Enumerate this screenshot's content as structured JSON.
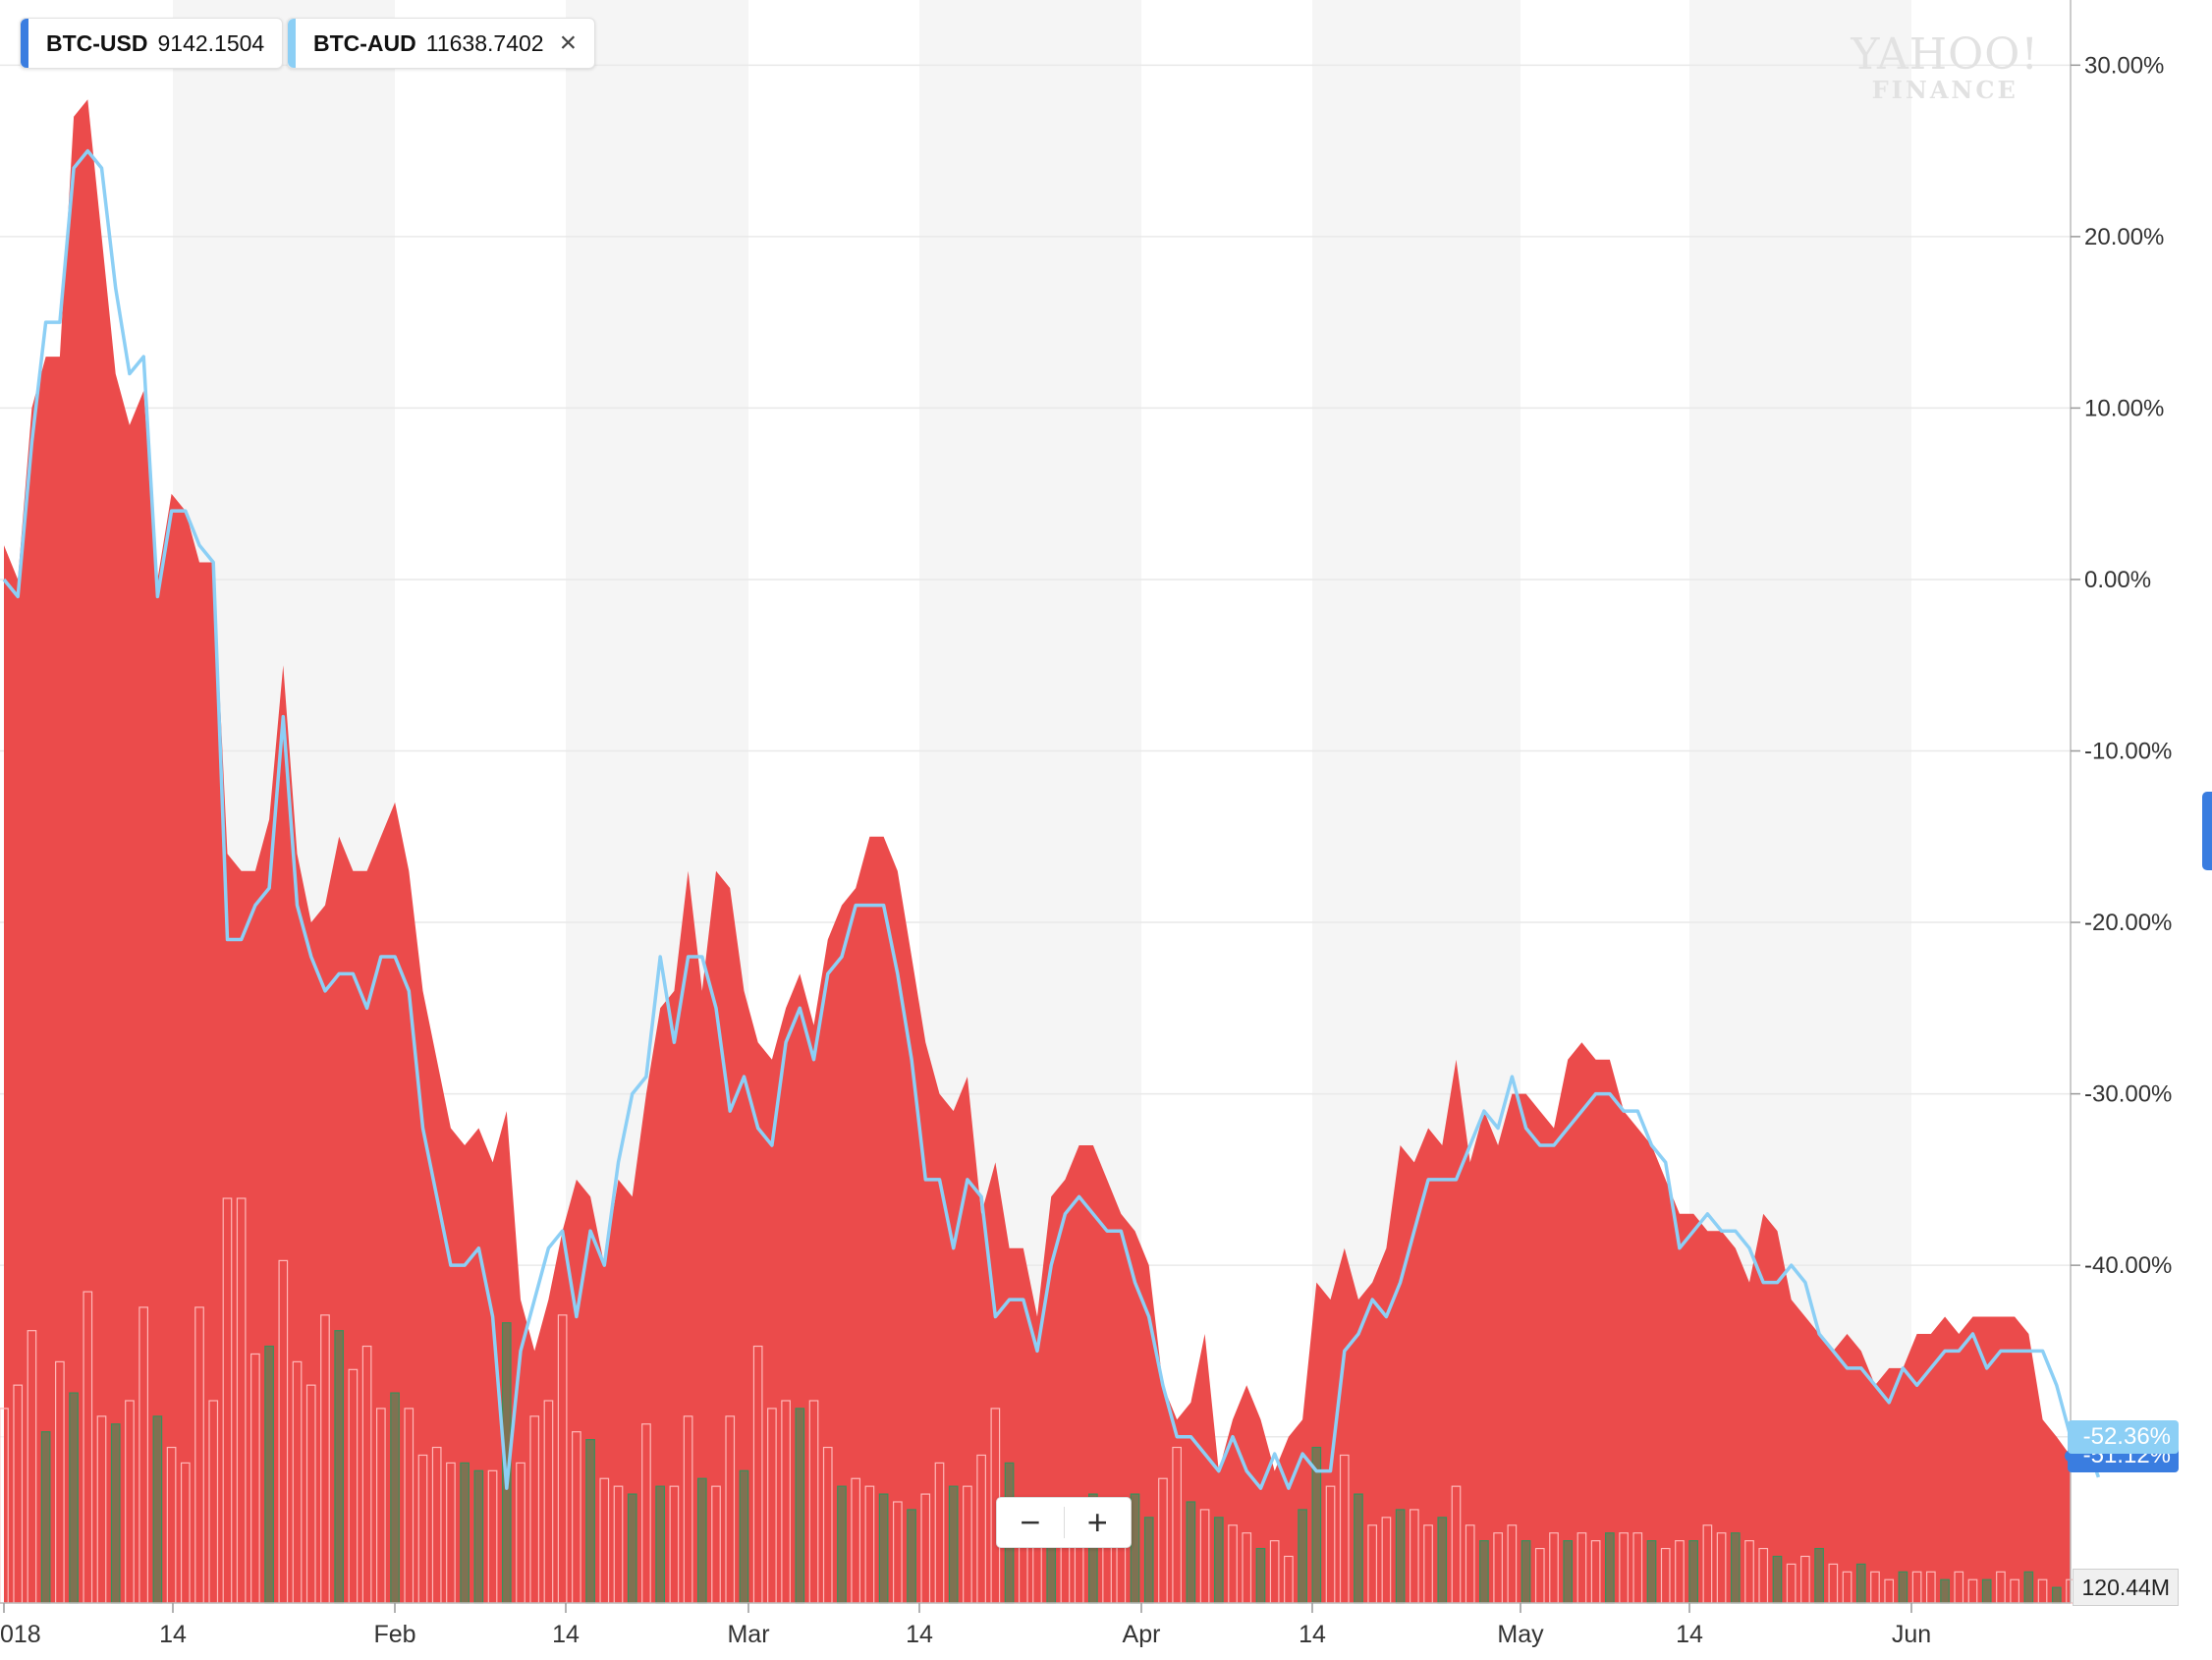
{
  "legend": [
    {
      "symbol": "BTC-USD",
      "value": "9142.1504",
      "color": "#3a7de0"
    },
    {
      "symbol": "BTC-AUD",
      "value": "11638.7402",
      "color": "#8ccff5"
    }
  ],
  "legend_close_icon": "close-icon",
  "watermark": {
    "line1": "YAHOO!",
    "line2": "FINANCE"
  },
  "zoom": {
    "minus": "−",
    "plus": "+"
  },
  "last_tags": {
    "usd": "-51.12%",
    "aud": "-52.36%",
    "volume": "120.44M"
  },
  "colors": {
    "usd_area": "#ea4545",
    "aud_line": "#8ccff5",
    "tag_usd": "#3a7de0",
    "tag_aud": "#8ccff5",
    "vol_up": "#2e8b57",
    "vol_down": "#ea4545"
  },
  "chart_data": {
    "type": "area",
    "x_ticks": [
      "018",
      "14",
      "Feb",
      "14",
      "Mar",
      "14",
      "Apr",
      "14",
      "May",
      "14",
      "Jun"
    ],
    "y_ticks": [
      "30.00%",
      "20.00%",
      "10.00%",
      "0.00%",
      "-10.00%",
      "-20.00%",
      "-30.00%",
      "-40.00%",
      "-50.00%"
    ],
    "ylim": [
      -59.7,
      33.8
    ],
    "grid": true,
    "series": [
      {
        "name": "BTC-USD",
        "type": "area",
        "values": [
          2,
          0,
          10,
          13,
          13,
          27,
          28,
          20,
          12,
          9,
          11,
          0,
          5,
          4,
          1,
          1,
          -16,
          -17,
          -17,
          -14,
          -5,
          -16,
          -20,
          -19,
          -15,
          -17,
          -17,
          -15,
          -13,
          -17,
          -24,
          -28,
          -32,
          -33,
          -32,
          -34,
          -31,
          -42,
          -45,
          -42,
          -38,
          -35,
          -36,
          -40,
          -35,
          -36,
          -30,
          -25,
          -24,
          -17,
          -24,
          -17,
          -18,
          -24,
          -27,
          -28,
          -25,
          -23,
          -26,
          -21,
          -19,
          -18,
          -15,
          -15,
          -17,
          -22,
          -27,
          -30,
          -31,
          -29,
          -37,
          -34,
          -39,
          -39,
          -43,
          -36,
          -35,
          -33,
          -33,
          -35,
          -37,
          -38,
          -40,
          -47,
          -49,
          -48,
          -44,
          -52,
          -49,
          -47,
          -49,
          -52,
          -50,
          -49,
          -41,
          -42,
          -39,
          -42,
          -41,
          -39,
          -33,
          -34,
          -32,
          -33,
          -28,
          -34,
          -31,
          -33,
          -30,
          -30,
          -31,
          -32,
          -28,
          -27,
          -28,
          -28,
          -31,
          -32,
          -33,
          -35,
          -37,
          -37,
          -38,
          -38,
          -39,
          -41,
          -37,
          -38,
          -42,
          -43,
          -44,
          -45,
          -44,
          -45,
          -47,
          -46,
          -46,
          -44,
          -44,
          -43,
          -44,
          -43,
          -43,
          -43,
          -43,
          -44,
          -49,
          -50,
          -51.12
        ]
      },
      {
        "name": "BTC-AUD",
        "type": "line",
        "values": [
          0,
          -1,
          8,
          15,
          15,
          24,
          25,
          24,
          17,
          12,
          13,
          -1,
          4,
          4,
          2,
          1,
          -21,
          -21,
          -19,
          -18,
          -8,
          -19,
          -22,
          -24,
          -23,
          -23,
          -25,
          -22,
          -22,
          -24,
          -32,
          -36,
          -40,
          -40,
          -39,
          -43,
          -53,
          -45,
          -42,
          -39,
          -38,
          -43,
          -38,
          -40,
          -34,
          -30,
          -29,
          -22,
          -27,
          -22,
          -22,
          -25,
          -31,
          -29,
          -32,
          -33,
          -27,
          -25,
          -28,
          -23,
          -22,
          -19,
          -19,
          -19,
          -23,
          -28,
          -35,
          -35,
          -39,
          -35,
          -36,
          -43,
          -42,
          -42,
          -45,
          -40,
          -37,
          -36,
          -37,
          -38,
          -38,
          -41,
          -43,
          -47,
          -50,
          -50,
          -51,
          -52,
          -50,
          -52,
          -53,
          -51,
          -53,
          -51,
          -52,
          -52,
          -45,
          -44,
          -42,
          -43,
          -41,
          -38,
          -35,
          -35,
          -35,
          -33,
          -31,
          -32,
          -29,
          -32,
          -33,
          -33,
          -32,
          -31,
          -30,
          -30,
          -31,
          -31,
          -33,
          -34,
          -39,
          -38,
          -37,
          -38,
          -38,
          -39,
          -41,
          -41,
          -40,
          -41,
          -44,
          -45,
          -46,
          -46,
          -47,
          -48,
          -46,
          -47,
          -46,
          -45,
          -45,
          -44,
          -46,
          -45,
          -45,
          -45,
          -45,
          -47,
          -50,
          -50,
          -52.36
        ]
      }
    ],
    "volume": {
      "values": [
        25,
        28,
        35,
        22,
        31,
        27,
        40,
        24,
        23,
        26,
        38,
        24,
        20,
        18,
        38,
        26,
        52,
        52,
        32,
        33,
        44,
        31,
        28,
        37,
        35,
        30,
        33,
        25,
        27,
        25,
        19,
        20,
        18,
        18,
        17,
        17,
        36,
        18,
        24,
        26,
        37,
        22,
        21,
        16,
        15,
        14,
        23,
        15,
        15,
        24,
        16,
        15,
        24,
        17,
        33,
        25,
        26,
        25,
        26,
        20,
        15,
        16,
        15,
        14,
        13,
        12,
        14,
        18,
        15,
        15,
        19,
        25,
        18,
        11,
        13,
        12,
        13,
        13,
        14,
        13,
        13,
        14,
        11,
        16,
        20,
        13,
        12,
        11,
        10,
        9,
        7,
        8,
        6,
        12,
        20,
        15,
        19,
        14,
        10,
        11,
        12,
        12,
        10,
        11,
        15,
        10,
        8,
        9,
        10,
        8,
        7,
        9,
        8,
        9,
        8,
        9,
        9,
        9,
        8,
        7,
        8,
        8,
        10,
        9,
        9,
        8,
        7,
        6,
        5,
        6,
        7,
        5,
        4,
        5,
        4,
        3,
        4,
        4,
        4,
        3,
        4,
        3,
        3,
        4,
        3,
        4,
        3,
        2,
        3,
        2,
        1
      ],
      "up": [
        0,
        0,
        0,
        1,
        0,
        1,
        0,
        0,
        1,
        0,
        0,
        1,
        0,
        0,
        0,
        0,
        0,
        0,
        0,
        1,
        0,
        0,
        0,
        0,
        1,
        0,
        0,
        0,
        1,
        0,
        0,
        0,
        0,
        1,
        1,
        0,
        1,
        0,
        0,
        0,
        0,
        0,
        1,
        0,
        0,
        1,
        0,
        1,
        0,
        0,
        1,
        0,
        0,
        1,
        0,
        0,
        0,
        1,
        0,
        0,
        1,
        0,
        0,
        1,
        0,
        1,
        0,
        0,
        1,
        0,
        0,
        0,
        1,
        0,
        0,
        1,
        0,
        0,
        1,
        0,
        0,
        1,
        1,
        0,
        0,
        1,
        0,
        1,
        0,
        0,
        1,
        0,
        0,
        1,
        1,
        0,
        0,
        1,
        0,
        0,
        1,
        0,
        0,
        1,
        0,
        0,
        1,
        0,
        0,
        1,
        0,
        0,
        1,
        0,
        0,
        1,
        0,
        0,
        1,
        0,
        0,
        1,
        0,
        0,
        1,
        0,
        0,
        1,
        0,
        0,
        1,
        0,
        0,
        1,
        0,
        0,
        1,
        0,
        0,
        1,
        0,
        0,
        1,
        0,
        0,
        1,
        0,
        1,
        0,
        1,
        0
      ]
    }
  }
}
